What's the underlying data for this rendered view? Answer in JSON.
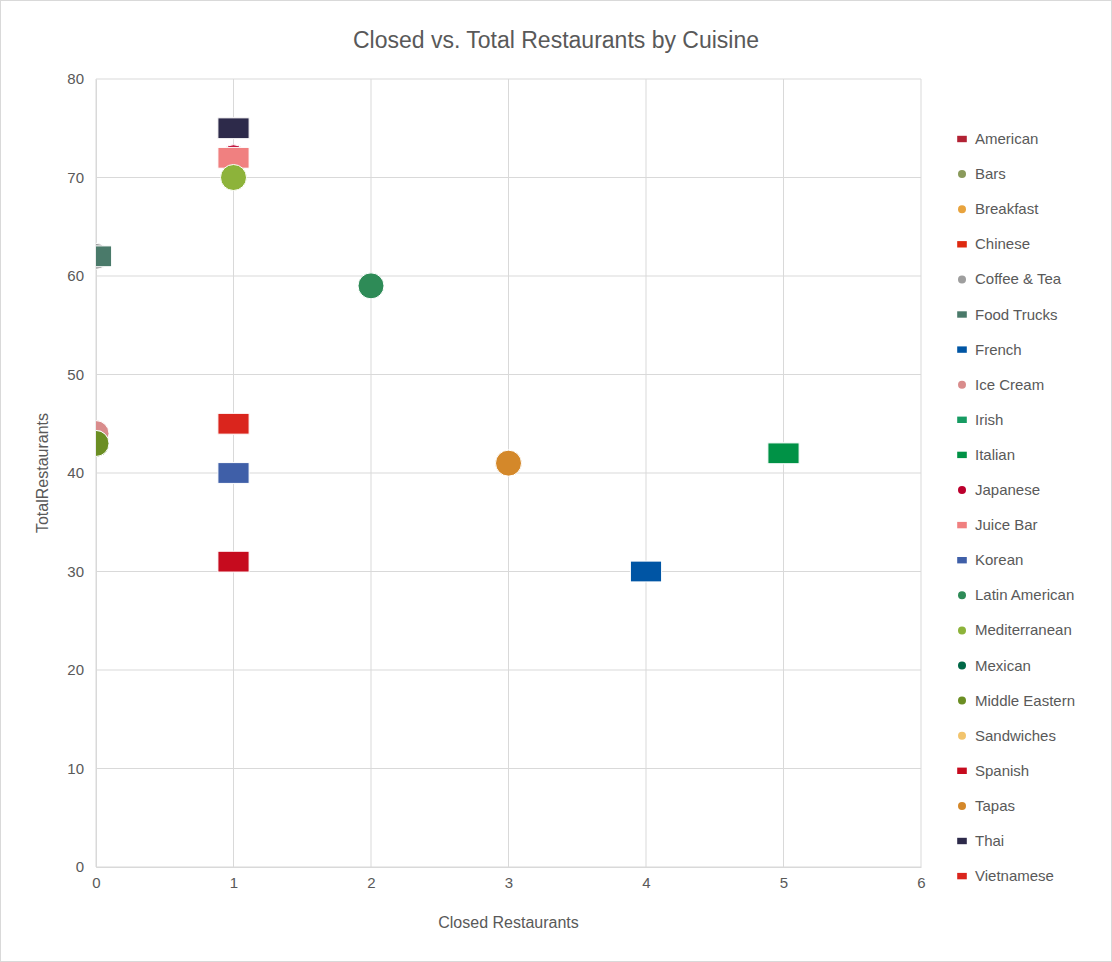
{
  "chart_data": {
    "type": "scatter",
    "title": "Closed vs. Total Restaurants by Cuisine",
    "x_label": "Closed Restaurants",
    "y_label": "TotalRestaurants",
    "xlim": [
      0,
      6
    ],
    "xticks": [
      0,
      1,
      2,
      3,
      4,
      5,
      6
    ],
    "ylim": [
      0,
      80
    ],
    "yticks": [
      0,
      10,
      20,
      30,
      40,
      50,
      60,
      70,
      80
    ],
    "grid": true,
    "legend": "right",
    "series": [
      {
        "name": "American",
        "color": "#b22234",
        "marker": "square",
        "x": [
          1
        ],
        "values": [
          75
        ]
      },
      {
        "name": "Bars",
        "color": "#8a9a5b",
        "marker": "circle",
        "x": [
          0
        ],
        "values": [
          43
        ]
      },
      {
        "name": "Breakfast",
        "color": "#e8a33d",
        "marker": "circle",
        "x": [
          3
        ],
        "values": [
          41
        ]
      },
      {
        "name": "Chinese",
        "color": "#de2910",
        "marker": "square",
        "x": [
          1
        ],
        "values": [
          45
        ]
      },
      {
        "name": "Coffee & Tea",
        "color": "#9e9e9e",
        "marker": "circle",
        "x": [
          0
        ],
        "values": [
          62
        ]
      },
      {
        "name": "Food Trucks",
        "color": "#4a7a6a",
        "marker": "square",
        "x": [
          0
        ],
        "values": [
          62
        ]
      },
      {
        "name": "French",
        "color": "#0055a4",
        "marker": "square",
        "x": [
          4
        ],
        "values": [
          30
        ]
      },
      {
        "name": "Ice Cream",
        "color": "#d98c8c",
        "marker": "circle",
        "x": [
          0
        ],
        "values": [
          44
        ]
      },
      {
        "name": "Irish",
        "color": "#169b62",
        "marker": "square",
        "x": [
          5
        ],
        "values": [
          42
        ]
      },
      {
        "name": "Italian",
        "color": "#009246",
        "marker": "square",
        "x": [
          5
        ],
        "values": [
          42
        ]
      },
      {
        "name": "Japanese",
        "color": "#bc002d",
        "marker": "circle",
        "x": [
          1
        ],
        "values": [
          72
        ]
      },
      {
        "name": "Juice Bar",
        "color": "#f08080",
        "marker": "square",
        "x": [
          1
        ],
        "values": [
          72
        ]
      },
      {
        "name": "Korean",
        "color": "#3f5fa8",
        "marker": "square",
        "x": [
          1
        ],
        "values": [
          40
        ]
      },
      {
        "name": "Latin American",
        "color": "#2e8b57",
        "marker": "circle",
        "x": [
          2
        ],
        "values": [
          59
        ]
      },
      {
        "name": "Mediterranean",
        "color": "#8db33a",
        "marker": "circle",
        "x": [
          1
        ],
        "values": [
          70
        ]
      },
      {
        "name": "Mexican",
        "color": "#006847",
        "marker": "circle",
        "x": [
          0
        ],
        "values": [
          43
        ]
      },
      {
        "name": "Middle Eastern",
        "color": "#6b8e23",
        "marker": "circle",
        "x": [
          0
        ],
        "values": [
          43
        ]
      },
      {
        "name": "Sandwiches",
        "color": "#f2c46d",
        "marker": "circle",
        "x": [
          3
        ],
        "values": [
          41
        ]
      },
      {
        "name": "Spanish",
        "color": "#c60b1e",
        "marker": "square",
        "x": [
          1
        ],
        "values": [
          31
        ]
      },
      {
        "name": "Tapas",
        "color": "#d4882a",
        "marker": "circle",
        "x": [
          3
        ],
        "values": [
          41
        ]
      },
      {
        "name": "Thai",
        "color": "#2d2a4a",
        "marker": "square",
        "x": [
          1
        ],
        "values": [
          75
        ]
      },
      {
        "name": "Vietnamese",
        "color": "#da251d",
        "marker": "square",
        "x": [
          1
        ],
        "values": [
          45
        ]
      }
    ]
  }
}
